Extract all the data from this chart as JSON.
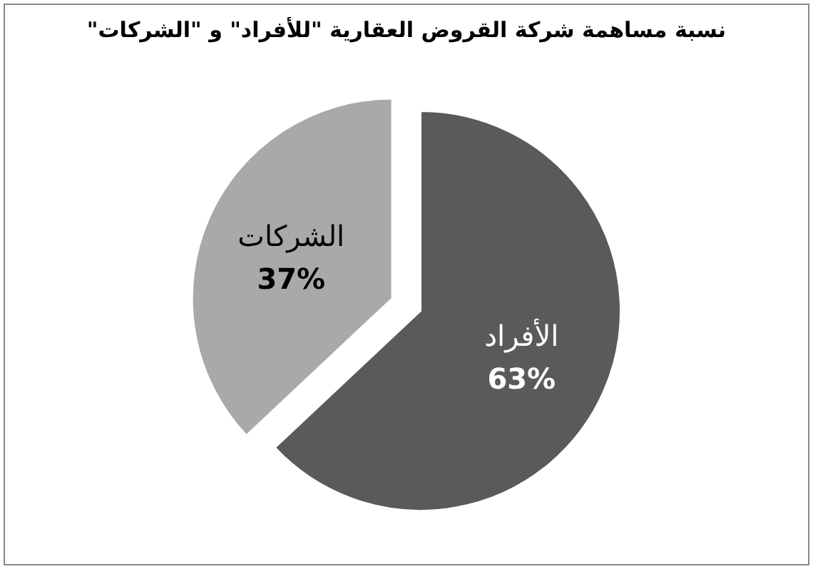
{
  "chart_data": {
    "type": "pie",
    "title": "نسبة مساهمة شركة القروض العقارية \"للأفراد\" و \"الشركات\"",
    "categories": [
      "الأفراد",
      "الشركات"
    ],
    "values": [
      63,
      37
    ],
    "colors": [
      "#5a5a5a",
      "#a9a9a9"
    ],
    "value_labels": [
      "63%",
      "37%"
    ]
  }
}
